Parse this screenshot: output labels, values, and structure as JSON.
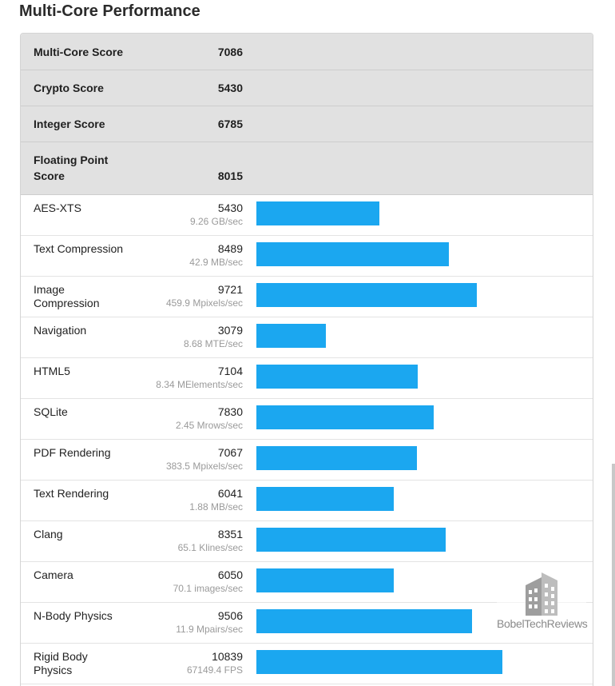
{
  "page": {
    "title": "Multi-Core Performance"
  },
  "summary": [
    {
      "label": "Multi-Core Score",
      "value": "7086"
    },
    {
      "label": "Crypto Score",
      "value": "5430"
    },
    {
      "label": "Integer Score",
      "value": "6785"
    },
    {
      "label": "Floating Point Score",
      "value": "8015"
    }
  ],
  "colors": {
    "bar": "#1ba7f0",
    "summary_bg": "#e1e1e1"
  },
  "chart_data": {
    "type": "bar",
    "orientation": "horizontal",
    "categories": [
      "AES-XTS",
      "Text Compression",
      "Image Compression",
      "Navigation",
      "HTML5",
      "SQLite",
      "PDF Rendering",
      "Text Rendering",
      "Clang",
      "Camera",
      "N-Body Physics",
      "Rigid Body Physics"
    ],
    "values": [
      5430,
      8489,
      9721,
      3079,
      7104,
      7830,
      7067,
      6041,
      8351,
      6050,
      9506,
      10839
    ],
    "rates": [
      "9.26 GB/sec",
      "42.9 MB/sec",
      "459.9 Mpixels/sec",
      "8.68 MTE/sec",
      "8.34 MElements/sec",
      "2.45 Mrows/sec",
      "383.5 Mpixels/sec",
      "1.88 MB/sec",
      "65.1 Klines/sec",
      "70.1 images/sec",
      "11.9 Mpairs/sec",
      "67149.4 FPS"
    ],
    "title": "",
    "xlabel": "",
    "ylabel": "",
    "grid": false,
    "legend": "none"
  },
  "watermark": {
    "text": "BobelTechReviews",
    "icon": "building-logo-icon"
  }
}
